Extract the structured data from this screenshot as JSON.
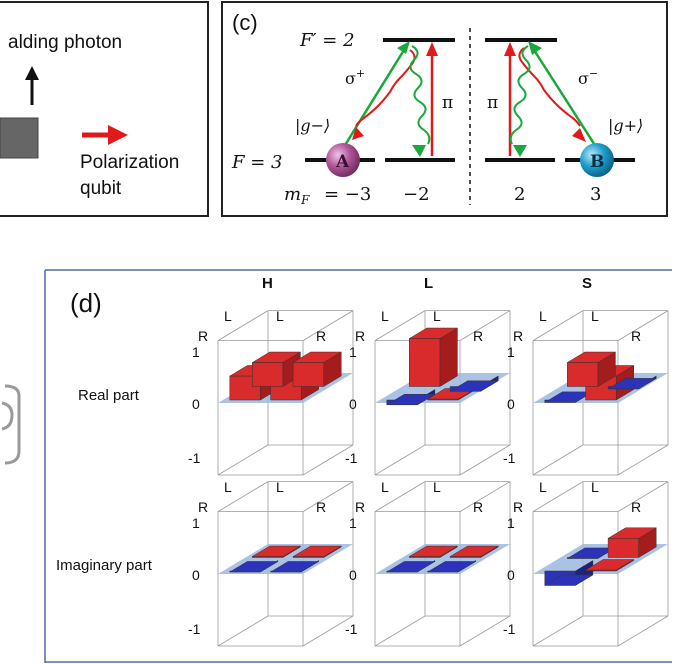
{
  "panel_c_left": {
    "heralding_label": "alding photon",
    "polarization_label": "Polarization",
    "qubit_label": "qubit"
  },
  "panel_c": {
    "tag": "(c)",
    "F_prime": "F′ = 2",
    "F_ground": "F = 3",
    "mF_label": "m",
    "mF_sub": "F",
    "mF_values": [
      "= −3",
      "−2",
      "2",
      "3"
    ],
    "sigma_plus": "σ+",
    "sigma_minus": "σ−",
    "pi": "π",
    "ket_minus": "|g−⟩",
    "ket_plus": "|g+⟩",
    "atom_a": "A",
    "atom_b": "B",
    "colors": {
      "red": "#e01a1a",
      "green": "#1aa83a",
      "atom_a": "#b0569a",
      "atom_b": "#1e9fcf"
    }
  },
  "panel_d": {
    "tag": "(d)",
    "columns": [
      "H",
      "L",
      "S"
    ],
    "rows": [
      "Real part",
      "Imaginary part"
    ],
    "axis_labels": [
      "R",
      "L",
      "L",
      "R"
    ],
    "z_ticks": [
      "1",
      "0",
      "-1"
    ],
    "colors": {
      "pos": "#d92b2b",
      "neg": "#2b34b8",
      "plane": "#9bb7de"
    }
  }
}
